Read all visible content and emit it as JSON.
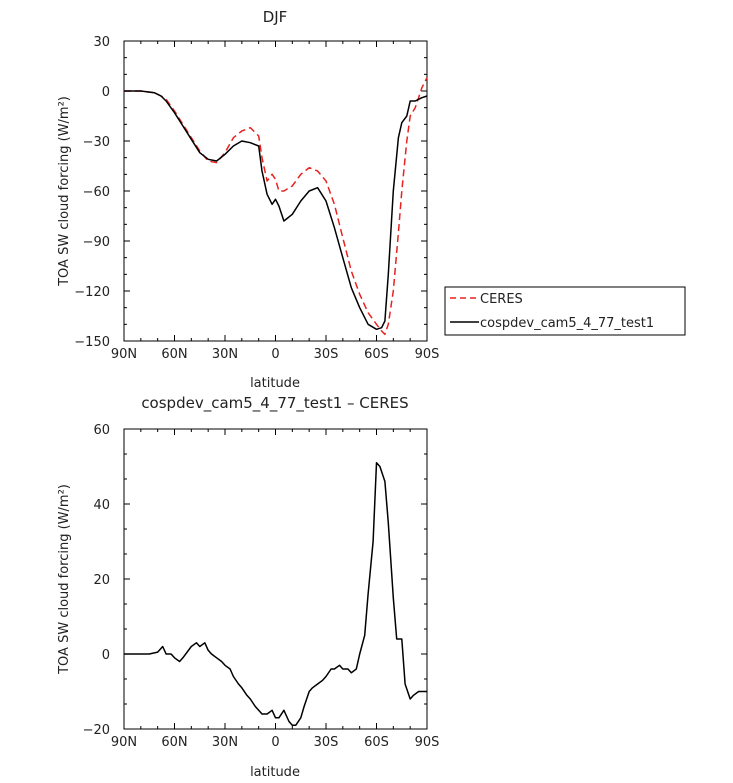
{
  "chart_data": [
    {
      "type": "line",
      "title": "DJF",
      "xlabel": "latitude",
      "ylabel": "TOA SW cloud forcing (W/m²)",
      "xlim": [
        -90,
        90
      ],
      "ylim": [
        -150,
        30
      ],
      "xticks": [
        {
          "v": -90,
          "label": "90N"
        },
        {
          "v": -60,
          "label": "60N"
        },
        {
          "v": -30,
          "label": "30N"
        },
        {
          "v": 0,
          "label": "0"
        },
        {
          "v": 30,
          "label": "30S"
        },
        {
          "v": 60,
          "label": "60S"
        },
        {
          "v": 90,
          "label": "90S"
        }
      ],
      "yticks": [
        30,
        0,
        -30,
        -60,
        -90,
        -120,
        -150
      ],
      "legend": {
        "placement": "right",
        "entries": [
          "CERES",
          "cospdev_cam5_4_77_test1"
        ]
      },
      "series": [
        {
          "name": "CERES",
          "color": "#e8221f",
          "dash": "dashed",
          "x": [
            -90,
            -80,
            -72,
            -68,
            -65,
            -60,
            -55,
            -50,
            -45,
            -40,
            -35,
            -30,
            -25,
            -20,
            -15,
            -10,
            -8,
            -5,
            -2,
            0,
            2,
            5,
            10,
            15,
            20,
            25,
            30,
            35,
            40,
            45,
            50,
            55,
            60,
            63,
            65,
            67,
            70,
            73,
            75,
            78,
            80,
            83,
            85,
            87,
            90
          ],
          "y": [
            0,
            0,
            -1,
            -3,
            -5,
            -12,
            -20,
            -28,
            -36,
            -42,
            -43,
            -37,
            -28,
            -24,
            -22,
            -27,
            -40,
            -54,
            -50,
            -53,
            -60,
            -60,
            -57,
            -50,
            -46,
            -48,
            -54,
            -68,
            -88,
            -108,
            -122,
            -133,
            -140,
            -144,
            -146,
            -140,
            -120,
            -85,
            -60,
            -30,
            -15,
            -10,
            -4,
            2,
            8
          ]
        },
        {
          "name": "cospdev_cam5_4_77_test1",
          "color": "#000000",
          "dash": "solid",
          "x": [
            -90,
            -80,
            -72,
            -68,
            -65,
            -60,
            -55,
            -50,
            -45,
            -40,
            -35,
            -30,
            -25,
            -20,
            -15,
            -10,
            -8,
            -5,
            -2,
            0,
            2,
            5,
            10,
            15,
            20,
            25,
            30,
            35,
            40,
            45,
            50,
            55,
            60,
            63,
            65,
            67,
            70,
            73,
            75,
            78,
            80,
            83,
            85,
            87,
            90
          ],
          "y": [
            0,
            0,
            -1,
            -3,
            -6,
            -13,
            -21,
            -29,
            -37,
            -41,
            -42,
            -38,
            -33,
            -30,
            -31,
            -33,
            -48,
            -62,
            -68,
            -65,
            -69,
            -78,
            -74,
            -66,
            -60,
            -58,
            -66,
            -82,
            -100,
            -118,
            -130,
            -140,
            -143,
            -142,
            -138,
            -110,
            -60,
            -28,
            -19,
            -15,
            -6,
            -6,
            -5,
            -4,
            -3
          ]
        }
      ]
    },
    {
      "type": "line",
      "title": "cospdev_cam5_4_77_test1 – CERES",
      "xlabel": "latitude",
      "ylabel": "TOA SW cloud forcing (W/m²)",
      "xlim": [
        -90,
        90
      ],
      "ylim": [
        -20,
        60
      ],
      "xticks": [
        {
          "v": -90,
          "label": "90N"
        },
        {
          "v": -60,
          "label": "60N"
        },
        {
          "v": -30,
          "label": "30N"
        },
        {
          "v": 0,
          "label": "0"
        },
        {
          "v": 30,
          "label": "30S"
        },
        {
          "v": 60,
          "label": "60S"
        },
        {
          "v": 90,
          "label": "90S"
        }
      ],
      "yticks": [
        60,
        40,
        20,
        0,
        -20
      ],
      "series": [
        {
          "color": "#000000",
          "dash": "solid",
          "x": [
            -90,
            -80,
            -75,
            -70,
            -67,
            -65,
            -62,
            -60,
            -57,
            -55,
            -50,
            -47,
            -45,
            -42,
            -40,
            -38,
            -35,
            -32,
            -30,
            -27,
            -25,
            -22,
            -20,
            -17,
            -15,
            -12,
            -10,
            -8,
            -5,
            -2,
            0,
            2,
            5,
            8,
            10,
            12,
            15,
            17,
            20,
            22,
            25,
            28,
            30,
            33,
            35,
            38,
            40,
            43,
            45,
            48,
            50,
            53,
            55,
            58,
            60,
            62,
            65,
            67,
            70,
            72,
            75,
            77,
            80,
            82,
            85,
            87,
            90
          ],
          "y": [
            0,
            0,
            0,
            0.5,
            2,
            0,
            0,
            -1,
            -2,
            -1,
            2,
            3,
            2,
            3,
            1,
            0,
            -1,
            -2,
            -3,
            -4,
            -6,
            -8,
            -9,
            -11,
            -12,
            -14,
            -15,
            -16,
            -16,
            -15,
            -17,
            -17,
            -15,
            -18,
            -19,
            -19,
            -17,
            -14,
            -10,
            -9,
            -8,
            -7,
            -6,
            -4,
            -4,
            -3,
            -4,
            -4,
            -5,
            -4,
            0,
            5,
            16,
            30,
            51,
            50,
            46,
            35,
            15,
            4,
            4,
            -8,
            -12,
            -11,
            -10,
            -10,
            -10
          ]
        }
      ]
    }
  ]
}
